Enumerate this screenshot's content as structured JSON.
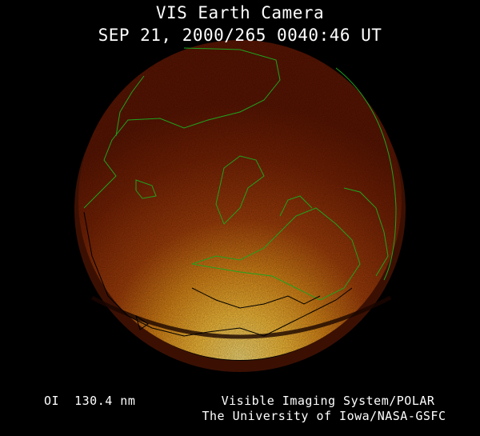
{
  "header": {
    "title": "VIS Earth Camera",
    "timestamp": "SEP 21, 2000/265 0040:46 UT"
  },
  "footer": {
    "wavelength": "OI  130.4 nm",
    "credit_line1": "Visible Imaging System/POLAR",
    "credit_line2": "The University of Iowa/NASA-GSFC"
  },
  "image": {
    "colors": {
      "background": "#000000",
      "disk_dark": "#6a1a02",
      "disk_mid": "#b84a08",
      "aurora_bright": "#ffd24a",
      "coastline_day": "#1fa31f",
      "coastline_night": "#000000"
    }
  }
}
